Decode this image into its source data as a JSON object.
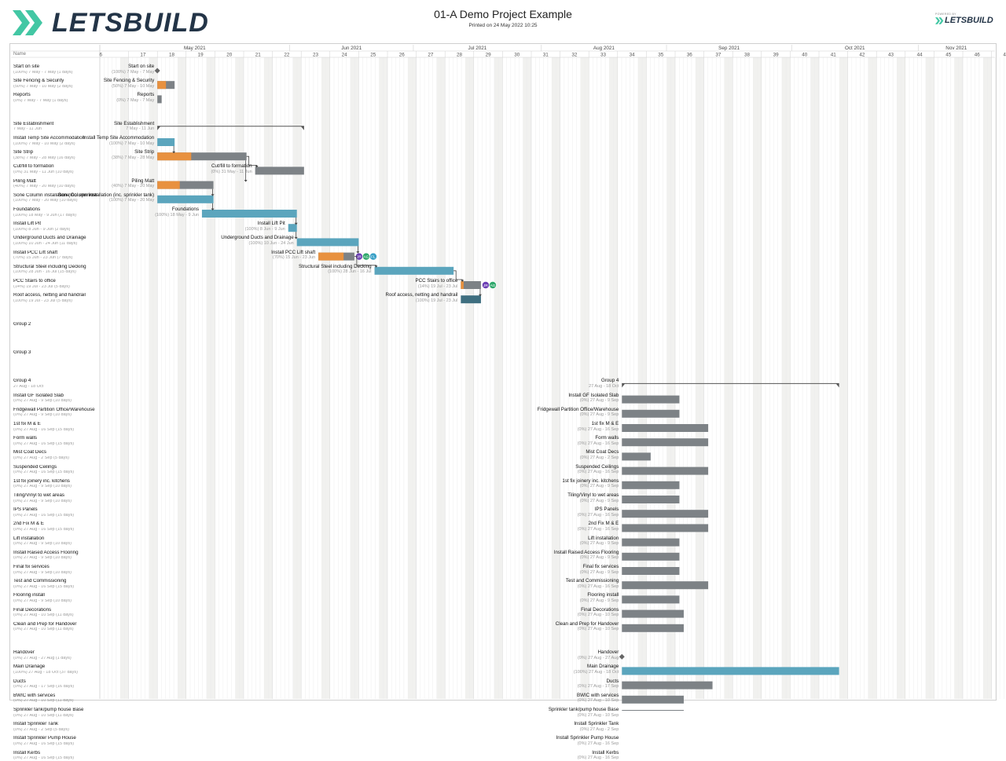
{
  "header": {
    "brand": "LETSBUILD",
    "title": "01-A Demo Project Example",
    "printed": "Printed on 24 May 2022 10:25",
    "powered_by": "POWERED BY",
    "powered_brand": "LETSBUILD"
  },
  "colors": {
    "teal": "#5ba5bd",
    "orange": "#e8913f",
    "grey": "#7d8286",
    "dark_teal": "#3f6f80",
    "brand_green": "#43c7a4",
    "brand_navy": "#233447"
  },
  "grid": {
    "name_header": "Name",
    "months": [
      "May 2021",
      "Jun 2021",
      "Jul 2021",
      "Aug 2021",
      "Sep 2021",
      "Oct 2021",
      "Nov 2021"
    ],
    "weeks": [
      "6",
      "17",
      "18",
      "19",
      "20",
      "21",
      "22",
      "23",
      "24",
      "25",
      "26",
      "27",
      "28",
      "29",
      "30",
      "31",
      "32",
      "33",
      "34",
      "35",
      "36",
      "37",
      "38",
      "39",
      "40",
      "41",
      "42",
      "43",
      "44",
      "45",
      "46",
      "47"
    ]
  },
  "rows": [
    {
      "name": "Start on site",
      "sub": "(100%) 7 May - 7 May (1 days)",
      "rname": "Start on site",
      "rsub": "(100%) 7 May - 7 May",
      "type": "milestone",
      "start": 2,
      "end": 2
    },
    {
      "name": "Site Fencing & Security",
      "sub": "(50%) 7 May - 10 May (2 days)",
      "rname": "Site Fencing & Security",
      "rsub": "(50%) 7 May - 10 May",
      "type": "task",
      "start": 2,
      "end": 2.6,
      "progress": 0.5
    },
    {
      "name": "Reports",
      "sub": "(0%) 7 May - 7 May (1 days)",
      "rname": "Reports",
      "rsub": "(0%) 7 May - 7 May",
      "type": "task",
      "start": 2,
      "end": 2.15,
      "progress": 0
    },
    {
      "name": "",
      "sub": "",
      "type": "blank"
    },
    {
      "name": "Site Establishment",
      "sub": "7 May - 11 Jun",
      "rname": "Site Establishment",
      "rsub": "7 May - 11 Jun",
      "type": "summary",
      "start": 2,
      "end": 7.1
    },
    {
      "name": "Install Temp Site Accommodation",
      "sub": "(100%) 7 May - 10 May (2 days)",
      "rname": "Install Temp Site Accommodation",
      "rsub": "(100%) 7 May - 10 May",
      "type": "task",
      "start": 2,
      "end": 2.6,
      "progress": 1
    },
    {
      "name": "Site Strip",
      "sub": "(38%) 7 May - 28 May (16 days)",
      "rname": "Site Strip",
      "rsub": "(38%) 7 May - 28 May",
      "type": "task",
      "start": 2,
      "end": 5.1,
      "progress": 0.38
    },
    {
      "name": "Cut/fill to formation",
      "sub": "(0%) 31 May - 11 Jun (10 days)",
      "rname": "Cut/fill to formation",
      "rsub": "(0%) 31 May - 11 Jun",
      "type": "task",
      "start": 5.4,
      "end": 7.1,
      "progress": 0
    },
    {
      "name": "Piling Matt",
      "sub": "(40%) 7 May - 20 May (10 days)",
      "rname": "Piling Matt",
      "rsub": "(40%) 7 May - 20 May",
      "type": "task",
      "start": 2,
      "end": 3.95,
      "progress": 0.4
    },
    {
      "name": "Sone Column installation (inc. sprinkler tank)",
      "sub": "(100%) 7 May - 20 May (10 days)",
      "rname": "Sone Column installation (inc. sprinkler tank)",
      "rsub": "(100%) 7 May - 20 May",
      "type": "task",
      "start": 2,
      "end": 3.95,
      "progress": 1
    },
    {
      "name": "Foundations",
      "sub": "(100%) 18 May - 9 Jun (17 days)",
      "rname": "Foundations",
      "rsub": "(100%) 18 May - 9 Jun",
      "type": "task",
      "start": 3.55,
      "end": 6.85,
      "progress": 1
    },
    {
      "name": "Install Lift Pit",
      "sub": "(100%) 8 Jun - 9 Jun (2 days)",
      "rname": "Install Lift Pit",
      "rsub": "(100%) 8 Jun - 9 Jun",
      "type": "task",
      "start": 6.55,
      "end": 6.85,
      "progress": 1
    },
    {
      "name": "Underground Ducts and Drainage",
      "sub": "(100%) 10 Jun - 24 Jun (11 days)",
      "rname": "Underground Ducts and Drainage",
      "rsub": "(100%) 10 Jun - 24 Jun",
      "type": "task",
      "start": 6.85,
      "end": 9.0,
      "progress": 1
    },
    {
      "name": "Install PCC Lift shaft",
      "sub": "(70%) 15 Jun - 23 Jun (7 days)",
      "rname": "Install PCC Lift shaft",
      "rsub": "(70%) 15 Jun - 23 Jun",
      "type": "task",
      "start": 7.6,
      "end": 8.85,
      "progress": 0.7,
      "avatars": [
        "JR",
        "AG",
        "FL"
      ]
    },
    {
      "name": "Structural Steel including Decking",
      "sub": "(100%) 28 Jun - 16 Jul (15 days)",
      "rname": "Structural Steel including Decking",
      "rsub": "(100%) 28 Jun - 16 Jul",
      "type": "task",
      "start": 9.55,
      "end": 12.3,
      "progress": 1
    },
    {
      "name": "PCC Stairs to office",
      "sub": "(14%) 19 Jul - 23 Jul (5 days)",
      "rname": "PCC Stairs to office",
      "rsub": "(14%) 19 Jul - 23 Jul",
      "type": "task",
      "start": 12.55,
      "end": 13.25,
      "progress": 0.14,
      "avatars": [
        "JR",
        "AG"
      ]
    },
    {
      "name": "Roof access, netting and handrail",
      "sub": "(100%) 19 Jul - 23 Jul (5 days)",
      "rname": "Roof access, netting and handrail",
      "rsub": "(100%) 19 Jul - 23 Jul",
      "type": "task",
      "start": 12.55,
      "end": 13.25,
      "progress": 1,
      "dark": true
    },
    {
      "name": "",
      "sub": "",
      "type": "blank"
    },
    {
      "name": "Group 2",
      "sub": "",
      "type": "group"
    },
    {
      "name": "",
      "sub": "",
      "type": "blank"
    },
    {
      "name": "Group 3",
      "sub": "",
      "type": "group"
    },
    {
      "name": "",
      "sub": "",
      "type": "blank"
    },
    {
      "name": "Group 4",
      "sub": "27 Aug - 18 Oct",
      "rname": "Group 4",
      "rsub": "27 Aug - 18 Oct",
      "type": "summary",
      "start": 18.15,
      "end": 25.7
    },
    {
      "name": "Install GF Isolated Slab",
      "sub": "(0%) 27 Aug - 9 Sep (10 days)",
      "rname": "Install GF Isolated Slab",
      "rsub": "(0%) 27 Aug - 9 Sep",
      "type": "task",
      "start": 18.15,
      "end": 20.15,
      "progress": 0
    },
    {
      "name": "Fridgewall Partition Office/Warehouse",
      "sub": "(0%) 27 Aug - 9 Sep (10 days)",
      "rname": "Fridgewall Partition Office/Warehouse",
      "rsub": "(0%) 27 Aug - 9 Sep",
      "type": "task",
      "start": 18.15,
      "end": 20.15,
      "progress": 0
    },
    {
      "name": "1st fix M & E",
      "sub": "(0%) 27 Aug - 16 Sep (15 days)",
      "rname": "1st fix M & E",
      "rsub": "(0%) 27 Aug - 16 Sep",
      "type": "task",
      "start": 18.15,
      "end": 21.15,
      "progress": 0
    },
    {
      "name": "Form walls",
      "sub": "(0%) 27 Aug - 16 Sep (15 days)",
      "rname": "Form walls",
      "rsub": "(0%) 27 Aug - 16 Sep",
      "type": "task",
      "start": 18.15,
      "end": 21.15,
      "progress": 0
    },
    {
      "name": "Mist Coat Decs",
      "sub": "(0%) 27 Aug - 2 Sep (5 days)",
      "rname": "Mist Coat Decs",
      "rsub": "(0%) 27 Aug - 2 Sep",
      "type": "task",
      "start": 18.15,
      "end": 19.15,
      "progress": 0
    },
    {
      "name": "Suspended Ceilings",
      "sub": "(0%) 27 Aug - 16 Sep (15 days)",
      "rname": "Suspended Ceilings",
      "rsub": "(0%) 27 Aug - 16 Sep",
      "type": "task",
      "start": 18.15,
      "end": 21.15,
      "progress": 0
    },
    {
      "name": "1st fix joinery inc. kitchens",
      "sub": "(0%) 27 Aug - 9 Sep (10 days)",
      "rname": "1st fix joinery inc. kitchens",
      "rsub": "(0%) 27 Aug - 9 Sep",
      "type": "task",
      "start": 18.15,
      "end": 20.15,
      "progress": 0
    },
    {
      "name": "Tiling/Vinyl to wet areas",
      "sub": "(0%) 27 Aug - 9 Sep (10 days)",
      "rname": "Tiling/Vinyl to wet areas",
      "rsub": "(0%) 27 Aug - 9 Sep",
      "type": "task",
      "start": 18.15,
      "end": 20.15,
      "progress": 0
    },
    {
      "name": "IPS Panels",
      "sub": "(0%) 27 Aug - 16 Sep (15 days)",
      "rname": "IPS Panels",
      "rsub": "(0%) 27 Aug - 16 Sep",
      "type": "task",
      "start": 18.15,
      "end": 21.15,
      "progress": 0
    },
    {
      "name": "2nd Fix M & E",
      "sub": "(0%) 27 Aug - 16 Sep (15 days)",
      "rname": "2nd Fix M & E",
      "rsub": "(0%) 27 Aug - 16 Sep",
      "type": "task",
      "start": 18.15,
      "end": 21.15,
      "progress": 0
    },
    {
      "name": "Lift installation",
      "sub": "(0%) 27 Aug - 9 Sep (10 days)",
      "rname": "Lift installation",
      "rsub": "(0%) 27 Aug - 9 Sep",
      "type": "task",
      "start": 18.15,
      "end": 20.15,
      "progress": 0
    },
    {
      "name": "Install Raised Access Flooring",
      "sub": "(0%) 27 Aug - 9 Sep (10 days)",
      "rname": "Install Raised Access Flooring",
      "rsub": "(0%) 27 Aug - 9 Sep",
      "type": "task",
      "start": 18.15,
      "end": 20.15,
      "progress": 0
    },
    {
      "name": "Final fix services",
      "sub": "(0%) 27 Aug - 9 Sep (10 days)",
      "rname": "Final fix services",
      "rsub": "(0%) 27 Aug - 9 Sep",
      "type": "task",
      "start": 18.15,
      "end": 20.15,
      "progress": 0
    },
    {
      "name": "Test and Commissioning",
      "sub": "(0%) 27 Aug - 16 Sep (15 days)",
      "rname": "Test and Commissioning",
      "rsub": "(0%) 27 Aug - 16 Sep",
      "type": "task",
      "start": 18.15,
      "end": 21.15,
      "progress": 0
    },
    {
      "name": "Flooring install",
      "sub": "(0%) 27 Aug - 9 Sep (10 days)",
      "rname": "Flooring install",
      "rsub": "(0%) 27 Aug - 9 Sep",
      "type": "task",
      "start": 18.15,
      "end": 20.15,
      "progress": 0
    },
    {
      "name": "Final Decorations",
      "sub": "(0%) 27 Aug - 10 Sep (11 days)",
      "rname": "Final Decorations",
      "rsub": "(0%) 27 Aug - 10 Sep",
      "type": "task",
      "start": 18.15,
      "end": 20.3,
      "progress": 0
    },
    {
      "name": "Clean and Prep for Handover",
      "sub": "(0%) 27 Aug - 10 Sep (11 days)",
      "rname": "Clean and Prep for Handover",
      "rsub": "(0%) 27 Aug - 10 Sep",
      "type": "task",
      "start": 18.15,
      "end": 20.3,
      "progress": 0
    },
    {
      "name": "",
      "sub": "",
      "type": "blank"
    },
    {
      "name": "Handover",
      "sub": "(0%) 27 Aug - 27 Aug (1 days)",
      "rname": "Handover",
      "rsub": "(0%) 27 Aug - 27 Aug",
      "type": "milestone",
      "start": 18.15,
      "end": 18.15
    },
    {
      "name": "Main Drainage",
      "sub": "(100%) 27 Aug - 18 Oct (37 days)",
      "rname": "Main Drainage",
      "rsub": "(100%) 27 Aug - 18 Oct",
      "type": "task",
      "start": 18.15,
      "end": 25.7,
      "progress": 1
    },
    {
      "name": "Ducts",
      "sub": "(0%) 27 Aug - 17 Sep (16 days)",
      "rname": "Ducts",
      "rsub": "(0%) 27 Aug - 17 Sep",
      "type": "task",
      "start": 18.15,
      "end": 21.3,
      "progress": 0
    },
    {
      "name": "BWIC with services",
      "sub": "(0%) 27 Aug - 10 Sep (11 days)",
      "rname": "BWIC with services",
      "rsub": "(0%) 27 Aug - 10 Sep",
      "type": "task",
      "start": 18.15,
      "end": 20.3,
      "progress": 0
    },
    {
      "name": "Sprinkler tank/pump house Base",
      "sub": "(0%) 27 Aug - 10 Sep (11 days)",
      "rname": "Sprinkler tank/pump house Base",
      "rsub": "(0%) 27 Aug - 10 Sep",
      "type": "task",
      "start": 18.15,
      "end": 20.3,
      "progress": 0
    },
    {
      "name": "Install Sprinkler Tank",
      "sub": "(0%) 27 Aug - 2 Sep (5 days)",
      "rname": "Install Sprinkler Tank",
      "rsub": "(0%) 27 Aug - 2 Sep",
      "type": "task",
      "start": 18.15,
      "end": 19.15,
      "progress": 0
    },
    {
      "name": "Install Sprinkler Pump House",
      "sub": "(0%) 27 Aug - 16 Sep (15 days)",
      "rname": "Install Sprinkler Pump House",
      "rsub": "(0%) 27 Aug - 16 Sep",
      "type": "task",
      "start": 18.15,
      "end": 21.15,
      "progress": 0
    },
    {
      "name": "Install Kerbs",
      "sub": "(0%) 27 Aug - 16 Sep (15 days)",
      "rname": "Install Kerbs",
      "rsub": "(0%) 27 Aug - 16 Sep",
      "type": "task",
      "start": 18.15,
      "end": 21.15,
      "progress": 0
    }
  ],
  "links": [
    [
      5,
      6
    ],
    [
      6,
      7
    ],
    [
      6,
      8
    ],
    [
      8,
      9
    ],
    [
      9,
      10
    ],
    [
      10,
      11
    ],
    [
      11,
      12
    ],
    [
      12,
      13
    ],
    [
      13,
      14
    ],
    [
      14,
      15
    ],
    [
      15,
      16
    ]
  ]
}
